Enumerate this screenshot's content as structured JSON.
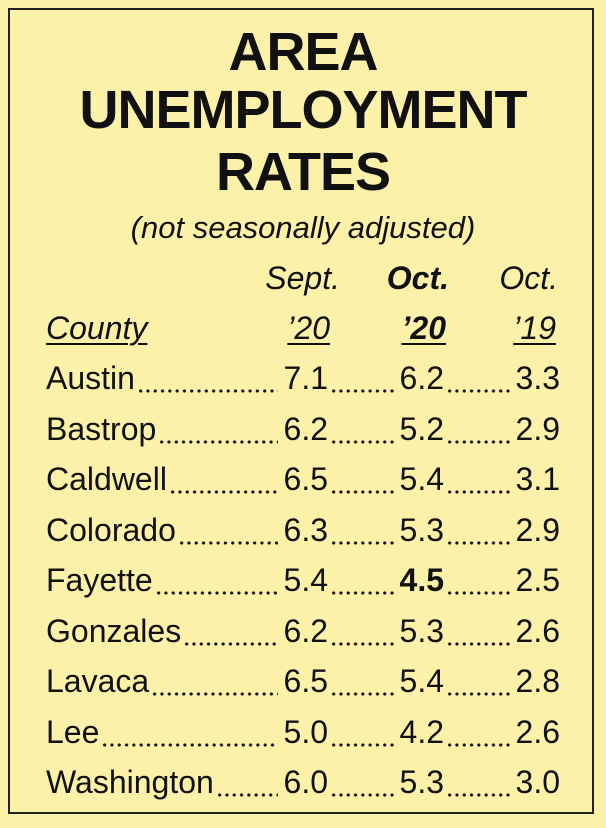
{
  "title_lines": [
    "AREA",
    "UNEMPLOYMENT",
    "RATES"
  ],
  "subtitle": "(not seasonally adjusted)",
  "header": {
    "top": [
      "Sept.",
      "Oct.",
      "Oct."
    ],
    "bottom": [
      "County",
      "’20",
      "’20",
      "’19"
    ]
  },
  "table": {
    "rows": [
      [
        "Austin",
        "7.1",
        "6.2",
        "3.3"
      ],
      [
        "Bastrop",
        "6.2",
        "5.2",
        "2.9"
      ],
      [
        "Caldwell",
        "6.5",
        "5.4",
        "3.1"
      ],
      [
        "Colorado",
        "6.3",
        "5.3",
        "2.9"
      ],
      [
        "Fayette",
        "5.4",
        "4.5",
        "2.5"
      ],
      [
        "Gonzales",
        "6.2",
        "5.3",
        "2.6"
      ],
      [
        "Lavaca",
        "6.5",
        "5.4",
        "2.8"
      ],
      [
        "Lee",
        "5.0",
        "4.2",
        "2.6"
      ],
      [
        "Washington",
        "6.0",
        "5.3",
        "3.0"
      ]
    ]
  }
}
